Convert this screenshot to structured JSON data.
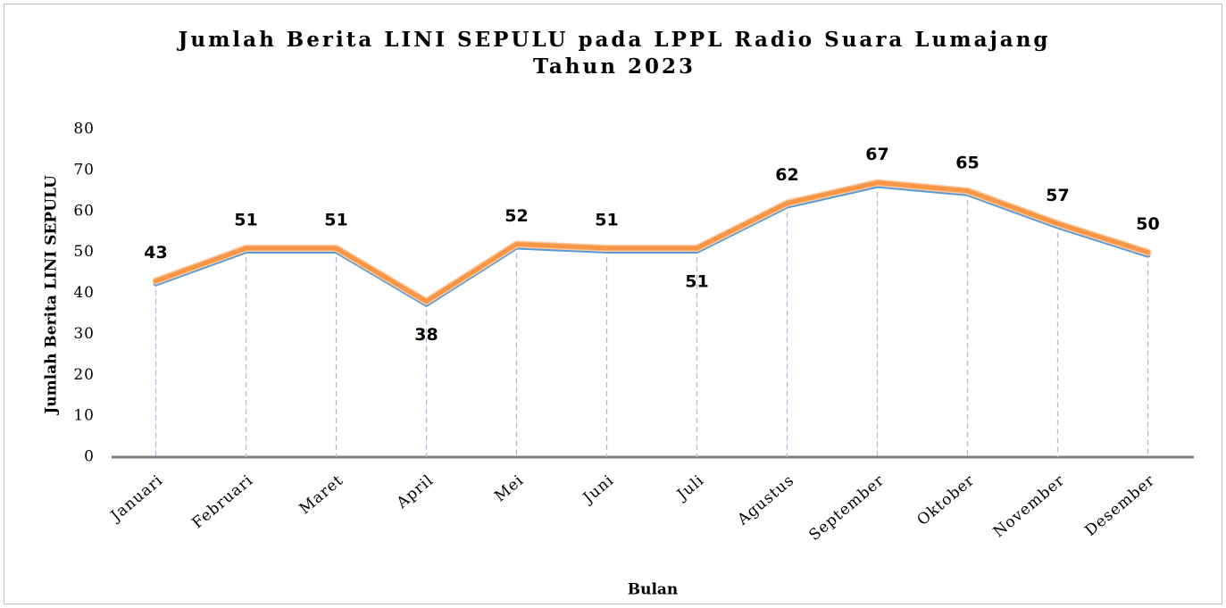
{
  "chart_data": {
    "type": "line",
    "title": "Jumlah Berita LINI SEPULU pada LPPL Radio Suara Lumajang",
    "subtitle": "Tahun 2023",
    "x_label": "Bulan",
    "y_label": "Jumlah Berita LINI SEPULU",
    "categories": [
      "Januari",
      "Februari",
      "Maret",
      "April",
      "Mei",
      "Juni",
      "Juli",
      "Agustus",
      "September",
      "Oktober",
      "November",
      "Desember"
    ],
    "values": [
      43,
      51,
      51,
      38,
      52,
      51,
      51,
      62,
      67,
      65,
      57,
      50
    ],
    "label_positions": [
      "above",
      "above",
      "above",
      "below",
      "above",
      "above",
      "below",
      "above",
      "above",
      "above",
      "above",
      "above"
    ],
    "color": "#f79646",
    "shadow_color": "#5b9bd5",
    "ylim": [
      0,
      80
    ],
    "yticks": [
      0,
      10,
      20,
      30,
      40,
      50,
      60,
      70,
      80
    ],
    "drop_lines": true
  }
}
